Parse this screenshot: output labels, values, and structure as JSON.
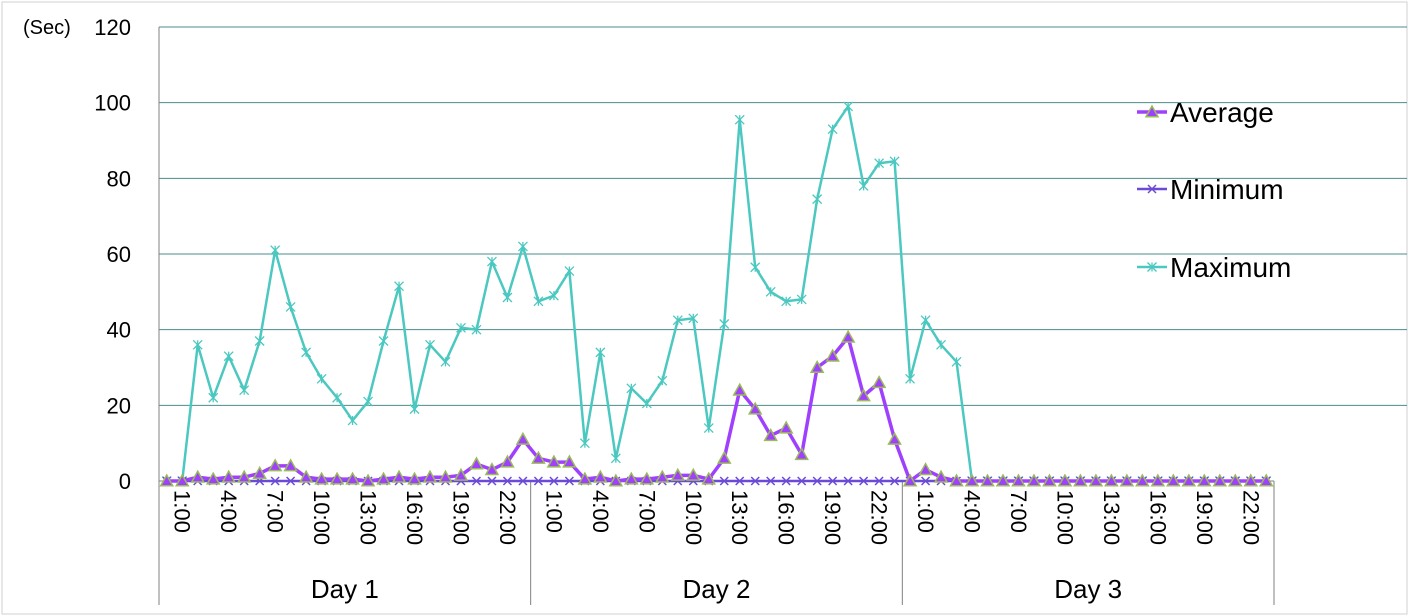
{
  "chart_data": {
    "type": "line",
    "unit_label": "(Sec)",
    "ylim": [
      0,
      120
    ],
    "y_ticks": [
      "0",
      "20",
      "40",
      "60",
      "80",
      "100",
      "120"
    ],
    "x_tick_labels": [
      "1:00",
      "4:00",
      "7:00",
      "10:00",
      "13:00",
      "16:00",
      "19:00",
      "22:00",
      "1:00",
      "4:00",
      "7:00",
      "10:00",
      "13:00",
      "16:00",
      "19:00",
      "22:00",
      "1:00",
      "4:00",
      "7:00",
      "10:00",
      "13:00",
      "16:00",
      "19:00",
      "22:00"
    ],
    "x_tick_index": [
      0,
      3,
      6,
      9,
      12,
      15,
      18,
      21,
      24,
      27,
      30,
      33,
      36,
      39,
      42,
      45,
      48,
      51,
      54,
      57,
      60,
      63,
      66,
      69
    ],
    "groups": [
      {
        "label": "Day 1",
        "start": 0,
        "end": 24
      },
      {
        "label": "Day 2",
        "start": 24,
        "end": 48
      },
      {
        "label": "Day 3",
        "start": 48,
        "end": 72
      }
    ],
    "grid": true,
    "legend_position": "right",
    "series": [
      {
        "name": "Average",
        "color": "#a040ff",
        "marker_color": "#9bbb59",
        "marker": "triangle",
        "values": [
          0,
          0,
          1,
          0.5,
          1,
          1,
          2,
          4,
          4,
          1,
          0.5,
          0.5,
          0.5,
          0,
          0.5,
          1,
          0.5,
          1,
          1,
          1.5,
          4.5,
          3,
          5,
          11,
          6,
          5,
          5,
          0.5,
          1,
          0,
          0.5,
          0.5,
          1,
          1.5,
          1.5,
          0.5,
          6,
          24,
          19,
          12,
          14,
          7,
          30,
          33,
          38,
          22.5,
          26,
          11,
          0,
          3,
          1,
          0,
          0,
          0,
          0,
          0,
          0,
          0,
          0,
          0,
          0,
          0,
          0,
          0,
          0,
          0,
          0,
          0,
          0,
          0,
          0,
          0
        ]
      },
      {
        "name": "Minimum",
        "color": "#6a4ad6",
        "marker": "x",
        "values": [
          0,
          0,
          0,
          0,
          0,
          0,
          0,
          0,
          0,
          0,
          0,
          0,
          0,
          0,
          0,
          0,
          0,
          0,
          0,
          0,
          0,
          0,
          0,
          0,
          0,
          0,
          0,
          0,
          0,
          0,
          0,
          0,
          0,
          0,
          0,
          0,
          0,
          0,
          0,
          0,
          0,
          0,
          0,
          0,
          0,
          0,
          0,
          0,
          0,
          0,
          0,
          0,
          0,
          0,
          0,
          0,
          0,
          0,
          0,
          0,
          0,
          0,
          0,
          0,
          0,
          0,
          0,
          0,
          0,
          0,
          0,
          0
        ]
      },
      {
        "name": "Maximum",
        "color": "#4bc8c0",
        "marker": "star",
        "values": [
          0,
          0,
          36,
          22,
          33,
          24,
          37,
          61,
          46,
          34,
          27,
          22,
          16,
          21,
          37,
          51.5,
          19,
          36,
          31.5,
          40.5,
          40,
          58,
          48.5,
          62,
          47.5,
          49,
          55.5,
          10,
          34,
          6,
          24.5,
          20.5,
          26.5,
          42.5,
          43,
          14,
          41.5,
          95.5,
          56.5,
          50,
          47.5,
          48,
          74.5,
          93,
          99,
          78,
          84,
          84.5,
          27,
          42.5,
          36,
          31.5,
          0,
          0,
          0,
          0,
          0,
          0,
          0,
          0,
          0,
          0,
          0,
          0,
          0,
          0,
          0,
          0,
          0,
          0,
          0,
          0
        ]
      }
    ]
  }
}
